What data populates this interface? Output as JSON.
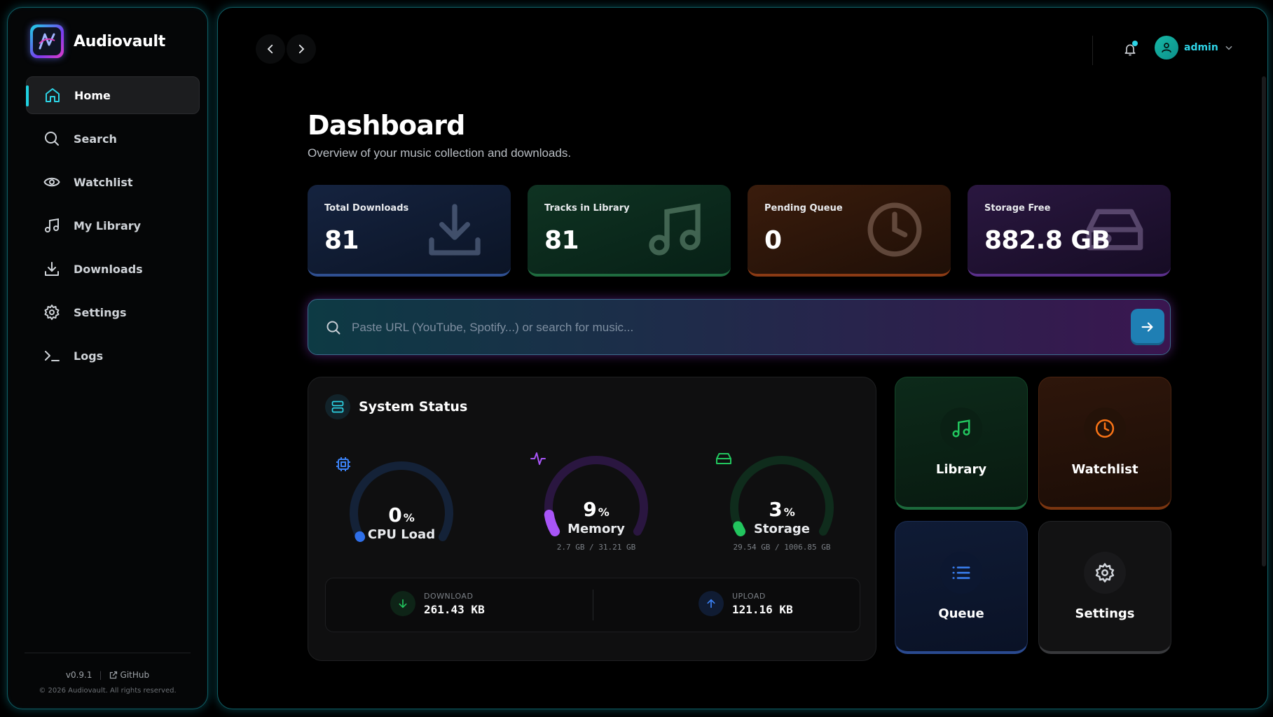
{
  "brand": {
    "name": "Audiovault"
  },
  "sidebar": {
    "items": [
      {
        "label": "Home",
        "icon": "home-icon",
        "active": true
      },
      {
        "label": "Search",
        "icon": "search-icon"
      },
      {
        "label": "Watchlist",
        "icon": "eye-icon"
      },
      {
        "label": "My Library",
        "icon": "music-icon"
      },
      {
        "label": "Downloads",
        "icon": "download-icon"
      },
      {
        "label": "Settings",
        "icon": "gear-icon"
      },
      {
        "label": "Logs",
        "icon": "terminal-icon"
      }
    ],
    "footer": {
      "version": "v0.9.1",
      "separator": "|",
      "github": "GitHub",
      "copyright": "© 2026 Audiovault. All rights reserved."
    }
  },
  "topbar": {
    "user": "admin",
    "has_notification": true
  },
  "page": {
    "title": "Dashboard",
    "subtitle": "Overview of your music collection and downloads."
  },
  "stats": [
    {
      "label": "Total Downloads",
      "value": "81",
      "icon": "download-icon",
      "color": "#2f4f90"
    },
    {
      "label": "Tracks in Library",
      "value": "81",
      "icon": "music-icon",
      "color": "#1f6b3f"
    },
    {
      "label": "Pending Queue",
      "value": "0",
      "icon": "clock-icon",
      "color": "#8a3a14"
    },
    {
      "label": "Storage Free",
      "value": "882.8 GB",
      "icon": "hard-drive-icon",
      "color": "#5a2f8a"
    }
  ],
  "search": {
    "placeholder": "Paste URL (YouTube, Spotify...) or search for music..."
  },
  "system_status": {
    "title": "System Status",
    "gauges": [
      {
        "name": "CPU Load",
        "value": "0",
        "percent": 0,
        "unit": "%",
        "detail": "",
        "color": "#2f6fe8",
        "track": "#142238",
        "icon": "cpu-icon"
      },
      {
        "name": "Memory",
        "value": "9",
        "percent": 9,
        "unit": "%",
        "detail": "2.7 GB / 31.21 GB",
        "color": "#a855f7",
        "track": "#2a1640",
        "icon": "activity-icon"
      },
      {
        "name": "Storage",
        "value": "3",
        "percent": 3,
        "unit": "%",
        "detail": "29.54 GB / 1006.85 GB",
        "color": "#22c55e",
        "track": "#0f2c1c",
        "icon": "hard-drive-icon"
      }
    ],
    "network": {
      "download_label": "DOWNLOAD",
      "download_value": "261.43 KB",
      "upload_label": "UPLOAD",
      "upload_value": "121.16 KB"
    }
  },
  "tiles": [
    {
      "label": "Library",
      "icon": "music-icon",
      "color": "#22c55e"
    },
    {
      "label": "Watchlist",
      "icon": "clock-icon",
      "color": "#f97316"
    },
    {
      "label": "Queue",
      "icon": "list-icon",
      "color": "#3b82f6"
    },
    {
      "label": "Settings",
      "icon": "gear-icon",
      "color": "#d1d5db"
    }
  ]
}
